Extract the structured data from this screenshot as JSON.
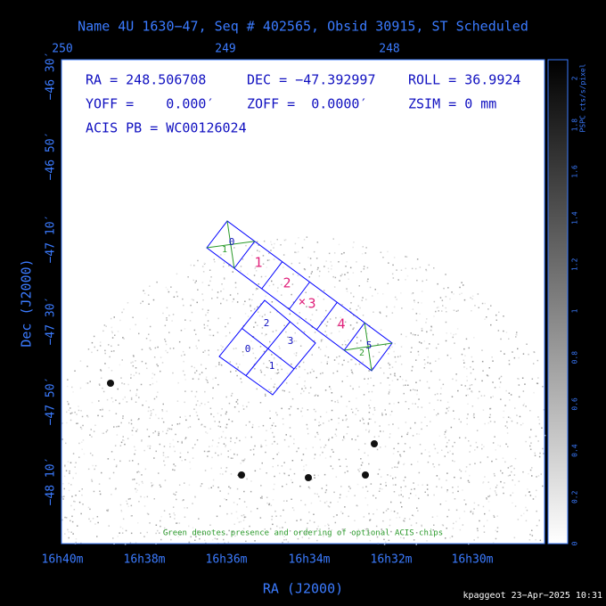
{
  "header": {
    "title": "Name 4U 1630−47, Seq # 402565, Obsid 30915, ST Scheduled"
  },
  "info": [
    "RA = 248.506708",
    "DEC = −47.392997",
    "ROLL = 36.9924",
    "YOFF =    0.000′",
    "ZOFF =  0.0000′",
    "ZSIM = 0 mm",
    "ACIS PB = WC00126024"
  ],
  "note": "Green denotes presence and ordering of optional ACIS chips",
  "top_axis": [
    "250",
    "249",
    "248"
  ],
  "bottom_axis": [
    "16h40m",
    "16h38m",
    "16h36m",
    "16h34m",
    "16h32m",
    "16h30m"
  ],
  "left_axis": [
    "−46 30′",
    "−46 50′",
    "−47 10′",
    "−47 30′",
    "−47 50′",
    "−48 10′"
  ],
  "x_title": "RA (J2000)",
  "y_title": "Dec (J2000)",
  "colorbar": {
    "title": "PSPC cts/s/pixel",
    "ticks": [
      "0",
      "0.2",
      "0.4",
      "0.6",
      "0.8",
      "1",
      "1.2",
      "1.4",
      "1.6",
      "1.8",
      "2"
    ]
  },
  "chips_i": [
    "2",
    "3",
    "0",
    "1"
  ],
  "chips_s": [
    "0",
    "1",
    "2",
    "3",
    "4",
    "5"
  ],
  "optional": [
    "1",
    "2"
  ],
  "footer": "kpaggeot 23−Apr−2025 10:31"
}
